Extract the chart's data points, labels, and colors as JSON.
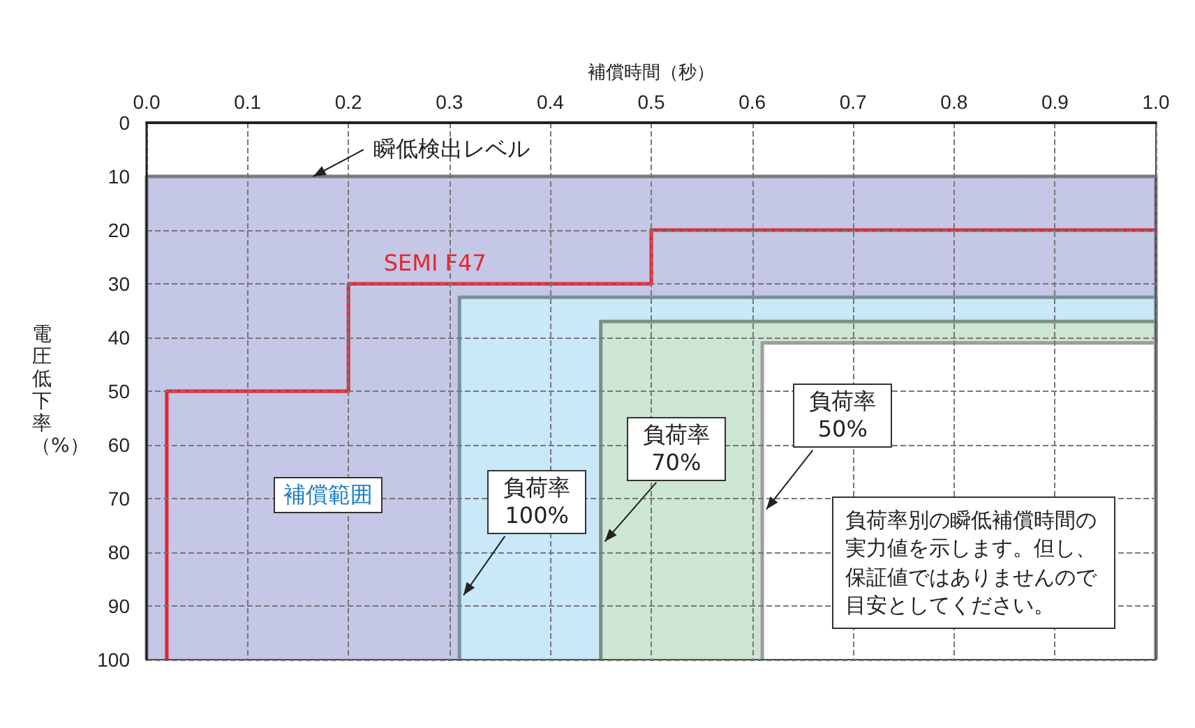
{
  "chart_data": {
    "type": "area",
    "xlabel": "補償時間（秒）",
    "ylabel": "電圧低下率（%）",
    "xlim": [
      0,
      1.0
    ],
    "xticks": [
      {
        "value": 0,
        "label": "0.0"
      },
      0.1,
      0.2,
      0.3,
      0.4,
      0.5,
      0.6,
      0.7,
      0.8,
      0.9,
      {
        "value": 1,
        "label": "1.0"
      }
    ],
    "ylim": [
      100,
      0
    ],
    "yticks": [
      0,
      10,
      20,
      30,
      40,
      50,
      60,
      70,
      80,
      90,
      100
    ],
    "grid": true,
    "marker": "none",
    "series": [
      {
        "name": "瞬低検出レベル",
        "color": "#c5c7e6",
        "x": [
          0,
          0,
          1.0,
          1.0
        ],
        "values": [
          100,
          10,
          10,
          100
        ]
      },
      {
        "name": "負荷率 100%",
        "color": "#c9e8f8",
        "x": [
          0.31,
          0.31,
          1.0,
          1.0
        ],
        "values": [
          100,
          32.5,
          32.5,
          100
        ]
      },
      {
        "name": "負荷率 70%",
        "color": "#cde5d3",
        "x": [
          0.45,
          0.45,
          1.0,
          1.0
        ],
        "values": [
          100,
          37,
          37,
          100
        ]
      },
      {
        "name": "負荷率 50%",
        "color": "#ffffff",
        "x": [
          0.61,
          0.61,
          1.0,
          1.0
        ],
        "values": [
          100,
          41,
          41,
          100
        ]
      },
      {
        "name": "SEMI F47",
        "type": "line",
        "color": "#e8242b",
        "x": [
          0.02,
          0.02,
          0.2,
          0.2,
          0.5,
          0.5,
          1.0
        ],
        "values": [
          100,
          50,
          50,
          30,
          30,
          20,
          20
        ]
      }
    ],
    "annotations": [
      "補償範囲",
      "負荷率別の瞬低補償時間の実力値を示します。但し、保証値ではありませんので目安としてください。"
    ]
  }
}
